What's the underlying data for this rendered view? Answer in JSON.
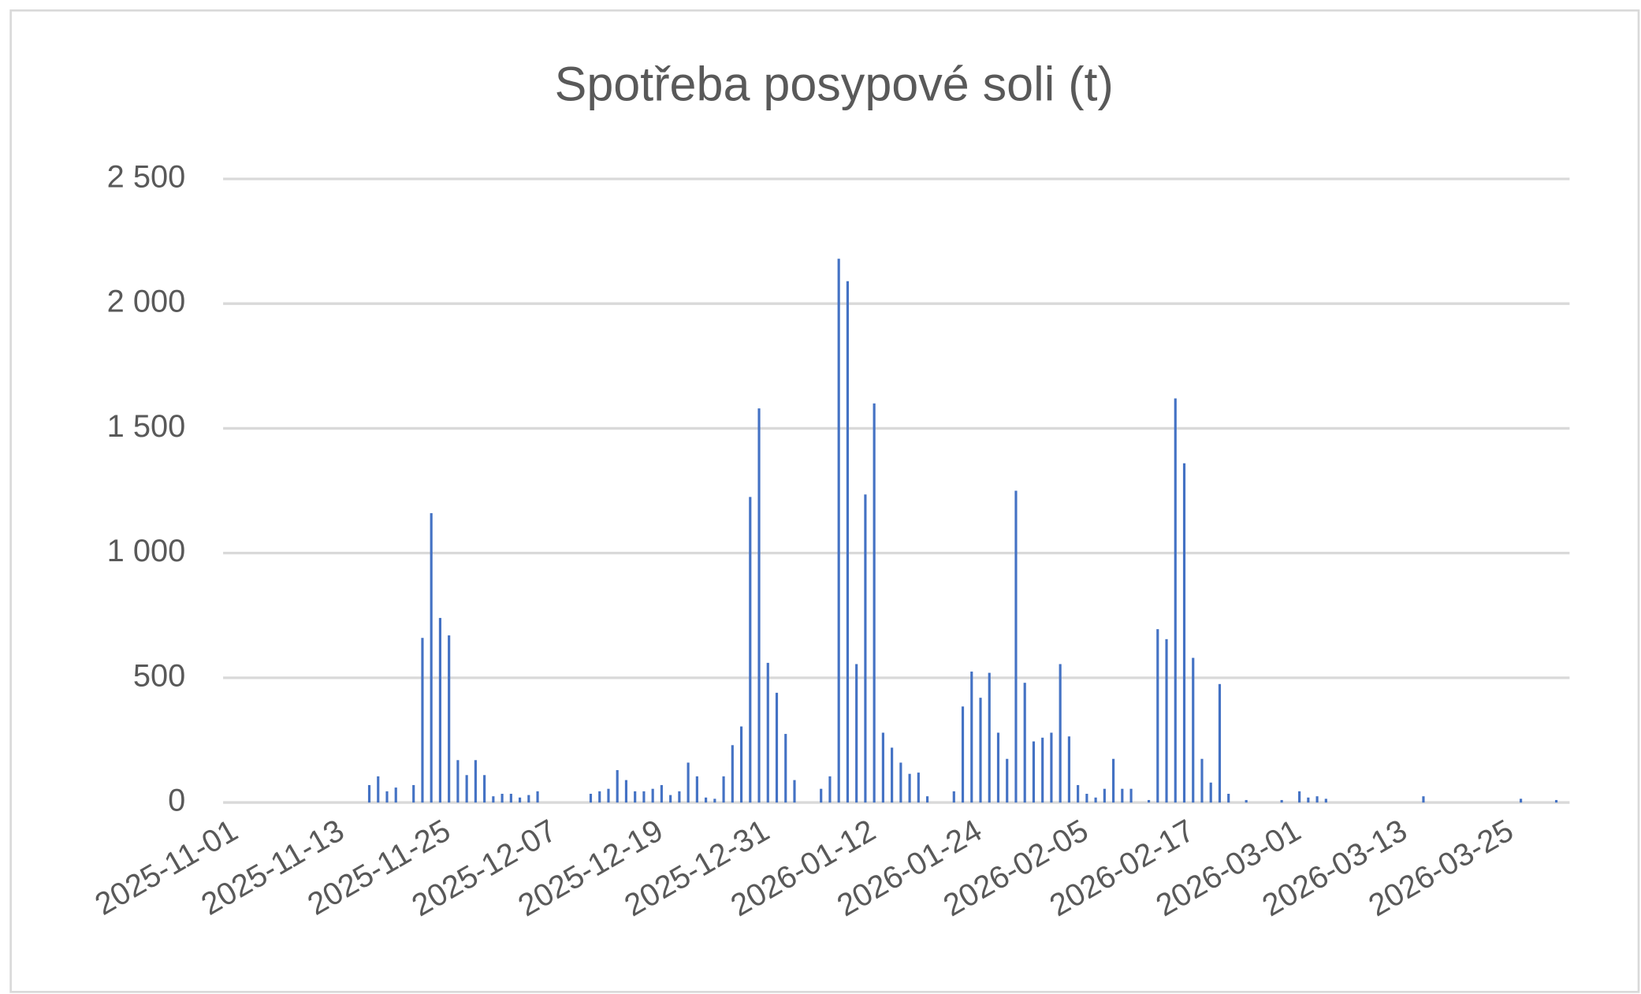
{
  "chart_data": {
    "type": "bar",
    "title": "Spotřeba posypové soli (t)",
    "color": "#4472c4",
    "grid": true,
    "ylim": [
      0,
      2500
    ],
    "yticks": [
      0,
      500,
      {
        "value": 1000,
        "label": "1 000"
      },
      {
        "value": 1500,
        "label": "1 500"
      },
      {
        "value": 2000,
        "label": "2 000"
      },
      {
        "value": 2500,
        "label": "2 500"
      }
    ],
    "categories": [
      "2025-11-01",
      null,
      null,
      null,
      null,
      null,
      null,
      null,
      null,
      null,
      null,
      null,
      "2025-11-13",
      null,
      null,
      null,
      null,
      null,
      null,
      null,
      null,
      null,
      null,
      null,
      "2025-11-25",
      null,
      null,
      null,
      null,
      null,
      null,
      null,
      null,
      null,
      null,
      null,
      "2025-12-07",
      null,
      null,
      null,
      null,
      null,
      null,
      null,
      null,
      null,
      null,
      null,
      "2025-12-19",
      null,
      null,
      null,
      null,
      null,
      null,
      null,
      null,
      null,
      null,
      null,
      "2025-12-31",
      null,
      null,
      null,
      null,
      null,
      null,
      null,
      null,
      null,
      null,
      null,
      "2026-01-12",
      null,
      null,
      null,
      null,
      null,
      null,
      null,
      null,
      null,
      null,
      null,
      "2026-01-24",
      null,
      null,
      null,
      null,
      null,
      null,
      null,
      null,
      null,
      null,
      null,
      "2026-02-05",
      null,
      null,
      null,
      null,
      null,
      null,
      null,
      null,
      null,
      null,
      null,
      "2026-02-17",
      null,
      null,
      null,
      null,
      null,
      null,
      null,
      null,
      null,
      null,
      null,
      "2026-03-01",
      null,
      null,
      null,
      null,
      null,
      null,
      null,
      null,
      null,
      null,
      null,
      "2026-03-13",
      null,
      null,
      null,
      null,
      null,
      null,
      null,
      null,
      null,
      null,
      null,
      "2026-03-25",
      null,
      null,
      null,
      null,
      null,
      null,
      null
    ],
    "values": [
      0,
      0,
      0,
      0,
      0,
      0,
      0,
      0,
      0,
      0,
      0,
      0,
      0,
      0,
      0,
      0,
      70,
      105,
      45,
      60,
      0,
      70,
      660,
      1160,
      740,
      670,
      170,
      110,
      170,
      110,
      25,
      35,
      35,
      20,
      30,
      45,
      0,
      0,
      0,
      0,
      0,
      35,
      45,
      55,
      130,
      90,
      45,
      45,
      55,
      70,
      30,
      45,
      160,
      105,
      20,
      15,
      105,
      230,
      305,
      1225,
      1580,
      560,
      440,
      275,
      90,
      0,
      0,
      55,
      105,
      2180,
      2090,
      555,
      1235,
      1600,
      280,
      220,
      160,
      115,
      120,
      25,
      0,
      0,
      45,
      385,
      525,
      420,
      520,
      280,
      175,
      1250,
      480,
      245,
      260,
      280,
      555,
      265,
      70,
      35,
      20,
      55,
      175,
      55,
      55,
      0,
      10,
      695,
      655,
      1620,
      1360,
      580,
      175,
      80,
      475,
      35,
      0,
      10,
      0,
      0,
      0,
      10,
      0,
      45,
      20,
      25,
      15,
      0,
      0,
      0,
      0,
      0,
      0,
      0,
      0,
      0,
      0,
      25,
      0,
      0,
      0,
      0,
      0,
      0,
      0,
      0,
      0,
      0,
      15,
      0,
      0,
      0,
      10,
      0
    ]
  }
}
